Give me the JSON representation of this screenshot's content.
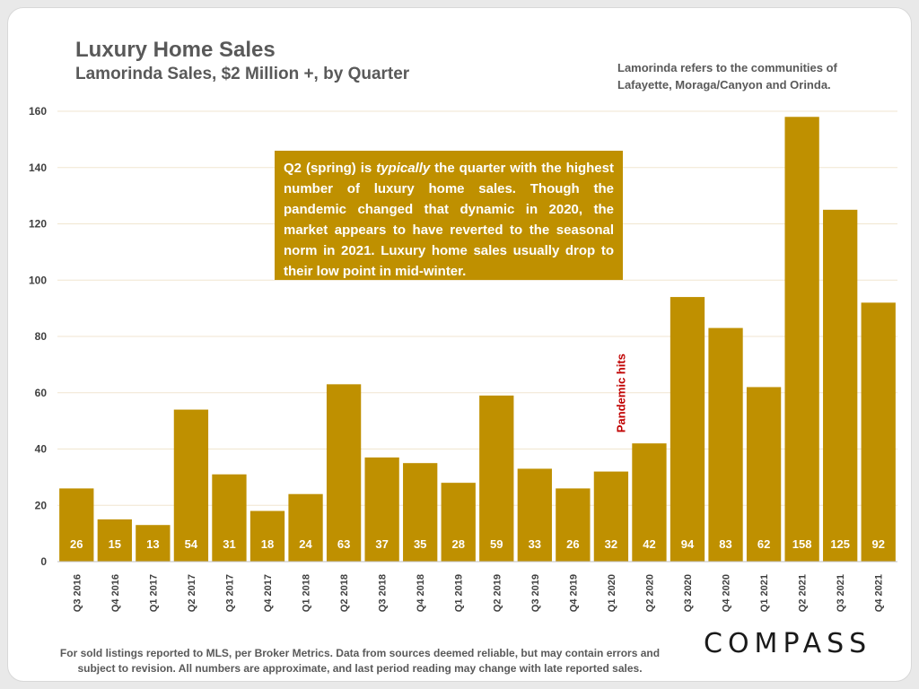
{
  "header": {
    "title": "Luxury Home Sales",
    "subtitle": "Lamorinda Sales, $2 Million +, by Quarter",
    "note": "Lamorinda refers to the communities of Lafayette, Moraga/Canyon and Orinda."
  },
  "callout": {
    "part1": "Q2 (spring) is ",
    "emphasis": "typically",
    "part2": " the quarter with the highest number of luxury home sales. Though the pandemic changed that dynamic in 2020, the market appears to have reverted to the seasonal norm in 2021. Luxury home sales usually drop to their low point in mid-winter."
  },
  "footer": {
    "note": "For sold listings reported to MLS, per Broker Metrics. Data from sources deemed reliable, but may contain errors and subject to revision. All numbers are approximate, and last period reading may change with late reported sales.",
    "logo": "COMPASS"
  },
  "colors": {
    "bar": "#bf9000",
    "gridline": "#f0e6d0",
    "annotation": "#c00000"
  },
  "chart_data": {
    "type": "bar",
    "title": "Luxury Home Sales",
    "subtitle": "Lamorinda Sales, $2 Million +, by Quarter",
    "categories": [
      "Q3 2016",
      "Q4 2016",
      "Q1 2017",
      "Q2 2017",
      "Q3 2017",
      "Q4 2017",
      "Q1 2018",
      "Q2 2018",
      "Q3 2018",
      "Q4 2018",
      "Q1 2019",
      "Q2 2019",
      "Q3 2019",
      "Q4 2019",
      "Q1 2020",
      "Q2 2020",
      "Q3 2020",
      "Q4 2020",
      "Q1 2021",
      "Q2 2021",
      "Q3 2021",
      "Q4 2021"
    ],
    "values": [
      26,
      15,
      13,
      54,
      31,
      18,
      24,
      63,
      37,
      35,
      28,
      59,
      33,
      26,
      32,
      42,
      94,
      83,
      62,
      158,
      125,
      92
    ],
    "ylim": [
      0,
      160
    ],
    "yticks": [
      0,
      20,
      40,
      60,
      80,
      100,
      120,
      140,
      160
    ],
    "xlabel": "",
    "ylabel": "",
    "annotations": [
      {
        "text": "Pandemic hits",
        "category": "Q2 2020"
      }
    ]
  }
}
